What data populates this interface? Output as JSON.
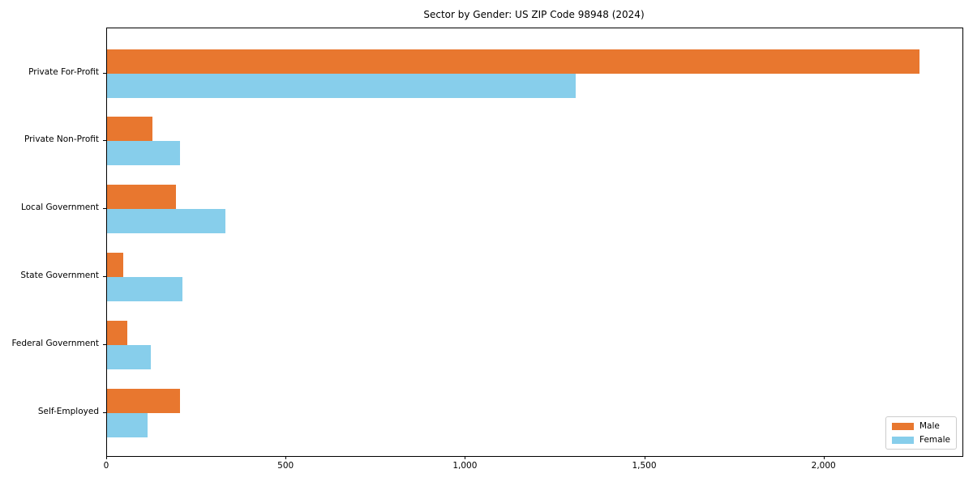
{
  "title": "Sector by Gender: US ZIP Code 98948 (2024)",
  "chart_data": {
    "type": "bar",
    "orientation": "horizontal",
    "title": "Sector by Gender: US ZIP Code 98948 (2024)",
    "categories": [
      "Private For-Profit",
      "Private Non-Profit",
      "Local Government",
      "State Government",
      "Federal Government",
      "Self-Employed"
    ],
    "series": [
      {
        "name": "Male",
        "color": "#e8772f",
        "values": [
          2265,
          126,
          191,
          44,
          57,
          203
        ]
      },
      {
        "name": "Female",
        "color": "#87ceeb",
        "values": [
          1307,
          203,
          330,
          211,
          122,
          113
        ]
      }
    ],
    "xlabel": "",
    "ylabel": "",
    "xlim": [
      0,
      2385
    ],
    "xticks": [
      0,
      500,
      1000,
      1500,
      2000
    ],
    "xtick_labels": [
      "0",
      "500",
      "1,000",
      "1,500",
      "2,000"
    ],
    "grid": false,
    "legend_position": "lower right"
  },
  "legend": {
    "items": [
      {
        "label": "Male",
        "color": "#e8772f"
      },
      {
        "label": "Female",
        "color": "#87ceeb"
      }
    ]
  }
}
